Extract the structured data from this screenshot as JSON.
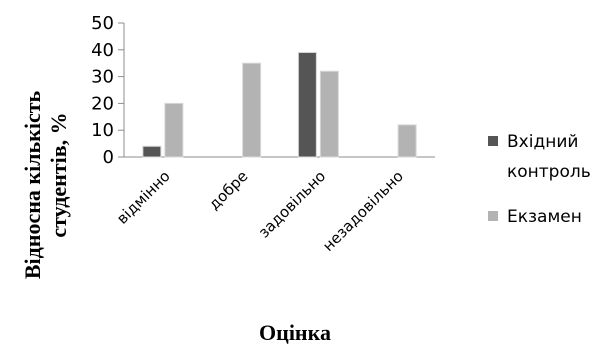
{
  "chart_data": {
    "type": "bar",
    "title": "",
    "xlabel": "Оцінка",
    "ylabel_lines": [
      "Відносна кількість",
      "студентів, %"
    ],
    "categories": [
      "відмінно",
      "добре",
      "задовільно",
      "незадовільно"
    ],
    "yticks": [
      0,
      10,
      20,
      30,
      40,
      50
    ],
    "ylim": [
      0,
      50
    ],
    "grid": false,
    "legend_position": "right",
    "series": [
      {
        "name": "Вхідний контроль",
        "name_lines": [
          "Вхідний",
          "контроль"
        ],
        "color": "#555555",
        "values": [
          4,
          0,
          39,
          0
        ]
      },
      {
        "name": "Екзамен",
        "name_lines": [
          "Екзамен"
        ],
        "color": "#b3b3b3",
        "values": [
          20,
          35,
          32,
          12
        ]
      }
    ]
  }
}
